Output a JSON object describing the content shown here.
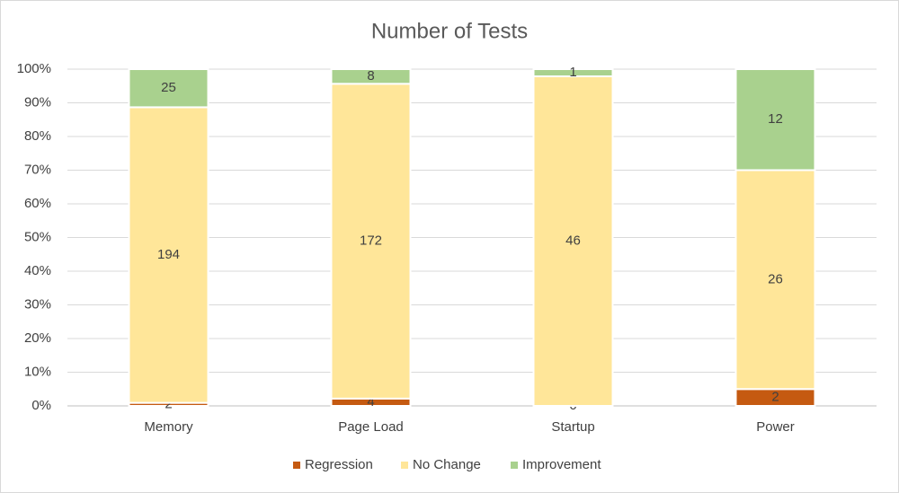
{
  "chart_data": {
    "type": "bar",
    "stacked": "percent",
    "title": "Number of Tests",
    "categories": [
      "Memory",
      "Page Load",
      "Startup",
      "Power"
    ],
    "series": [
      {
        "name": "Regression",
        "color": "#c55a11",
        "values": [
          2,
          4,
          0,
          2
        ]
      },
      {
        "name": "No Change",
        "color": "#ffe699",
        "values": [
          194,
          172,
          46,
          26
        ]
      },
      {
        "name": "Improvement",
        "color": "#a9d18e",
        "values": [
          25,
          8,
          1,
          12
        ]
      }
    ],
    "ylim": [
      0,
      100
    ],
    "yticks": [
      {
        "value": 0,
        "label": "0%"
      },
      {
        "value": 10,
        "label": "10%"
      },
      {
        "value": 20,
        "label": "20%"
      },
      {
        "value": 30,
        "label": "30%"
      },
      {
        "value": 40,
        "label": "40%"
      },
      {
        "value": 50,
        "label": "50%"
      },
      {
        "value": 60,
        "label": "60%"
      },
      {
        "value": 70,
        "label": "70%"
      },
      {
        "value": 80,
        "label": "80%"
      },
      {
        "value": 90,
        "label": "90%"
      },
      {
        "value": 100,
        "label": "100%"
      }
    ],
    "grid": true,
    "legend": "bottom"
  }
}
